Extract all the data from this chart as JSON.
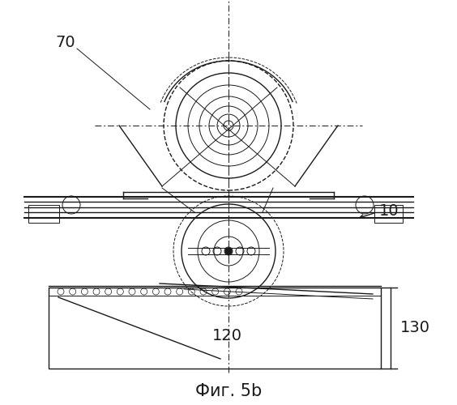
{
  "title": "Фиг. 5b",
  "label_70": "70",
  "label_10": "10",
  "label_120": "120",
  "label_130": "130",
  "bg_color": "#ffffff",
  "line_color": "#1a1a1a",
  "fig_width": 5.64,
  "fig_height": 5.0,
  "dpi": 100
}
